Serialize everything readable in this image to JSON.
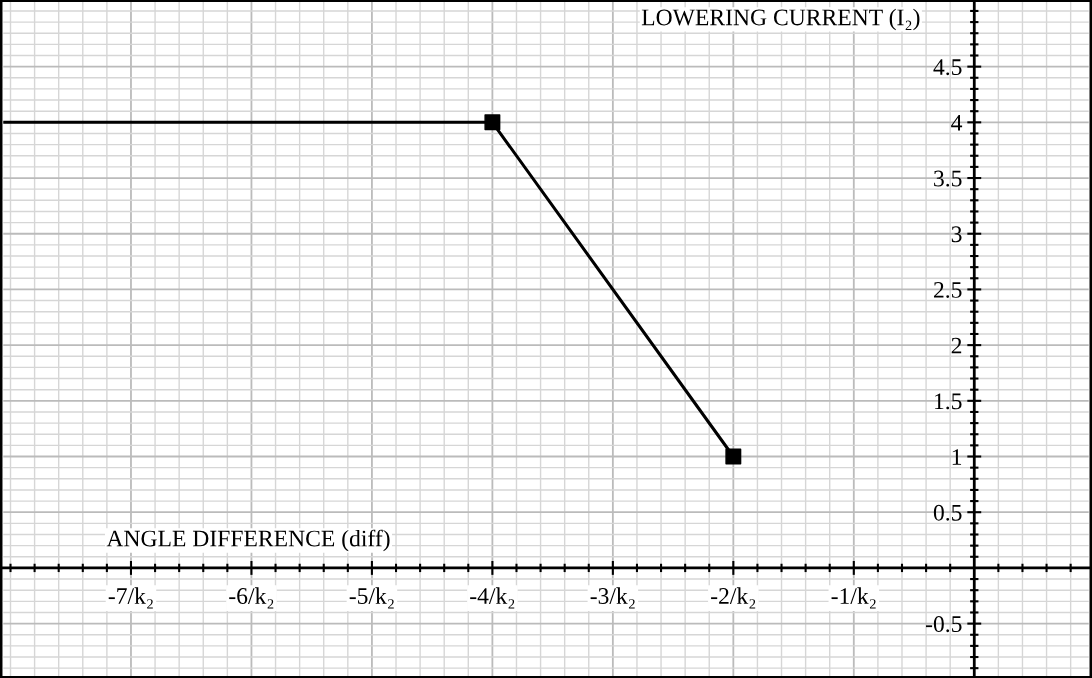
{
  "chart_data": {
    "type": "line",
    "xlabel": "ANGLE DIFFERENCE (diff)",
    "ylabel": "LOWERING CURRENT (I₂)",
    "series": [
      {
        "x": [
          -8.06,
          -4,
          -2
        ],
        "values": [
          4,
          4,
          1
        ],
        "color": "#000000",
        "marker": "none"
      },
      {
        "type": "scatter",
        "x": [
          -4,
          -2
        ],
        "values": [
          4,
          1
        ],
        "color": "#000000",
        "marker": "square"
      }
    ],
    "xlim": [
      -8.06,
      0.95
    ],
    "ylim": [
      -0.97,
      5.08
    ],
    "xticks": [
      {
        "value": -7,
        "label": "-7/k₂"
      },
      {
        "value": -6,
        "label": "-6/k₂"
      },
      {
        "value": -5,
        "label": "-5/k₂"
      },
      {
        "value": -4,
        "label": "-4/k₂"
      },
      {
        "value": -3,
        "label": "-3/k₂"
      },
      {
        "value": -2,
        "label": "-2/k₂"
      },
      {
        "value": -1,
        "label": "-1/k₂"
      }
    ],
    "yticks": [
      -0.5,
      0.5,
      1,
      1.5,
      2,
      2.5,
      3,
      3.5,
      4,
      4.5
    ],
    "grid": true
  }
}
